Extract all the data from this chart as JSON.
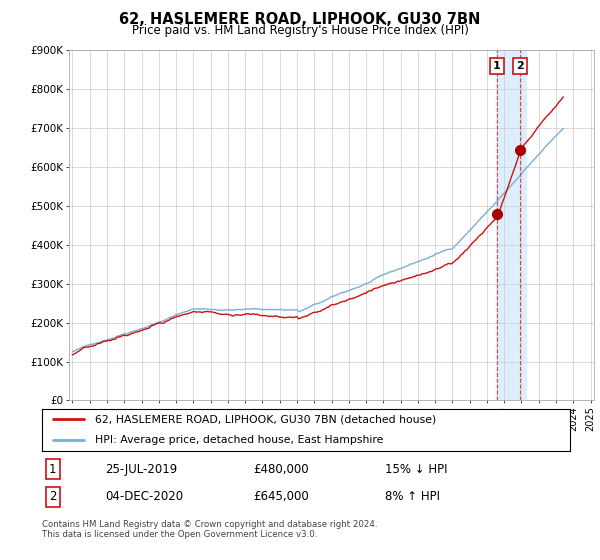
{
  "title": "62, HASLEMERE ROAD, LIPHOOK, GU30 7BN",
  "subtitle": "Price paid vs. HM Land Registry's House Price Index (HPI)",
  "footer": "Contains HM Land Registry data © Crown copyright and database right 2024.\nThis data is licensed under the Open Government Licence v3.0.",
  "legend_line1": "62, HASLEMERE ROAD, LIPHOOK, GU30 7BN (detached house)",
  "legend_line2": "HPI: Average price, detached house, East Hampshire",
  "transaction1_date": "25-JUL-2019",
  "transaction1_price": "£480,000",
  "transaction1_hpi": "15% ↓ HPI",
  "transaction2_date": "04-DEC-2020",
  "transaction2_price": "£645,000",
  "transaction2_hpi": "8% ↑ HPI",
  "hpi_color": "#7bafd4",
  "price_color": "#cc1111",
  "marker_color": "#aa0000",
  "ylim": [
    0,
    900000
  ],
  "yticks": [
    0,
    100000,
    200000,
    300000,
    400000,
    500000,
    600000,
    700000,
    800000,
    900000
  ],
  "ytick_labels": [
    "£0",
    "£100K",
    "£200K",
    "£300K",
    "£400K",
    "£500K",
    "£600K",
    "£700K",
    "£800K",
    "£900K"
  ],
  "transaction1_x": 2019.57,
  "transaction1_y": 480000,
  "transaction2_x": 2020.92,
  "transaction2_y": 645000,
  "shading_x1": 2019.5,
  "shading_x2": 2021.25,
  "vline_color": "#dd4444",
  "shade_color": "#ddeeff",
  "grid_color": "#cccccc",
  "xlim_left": 1994.8,
  "xlim_right": 2025.2
}
